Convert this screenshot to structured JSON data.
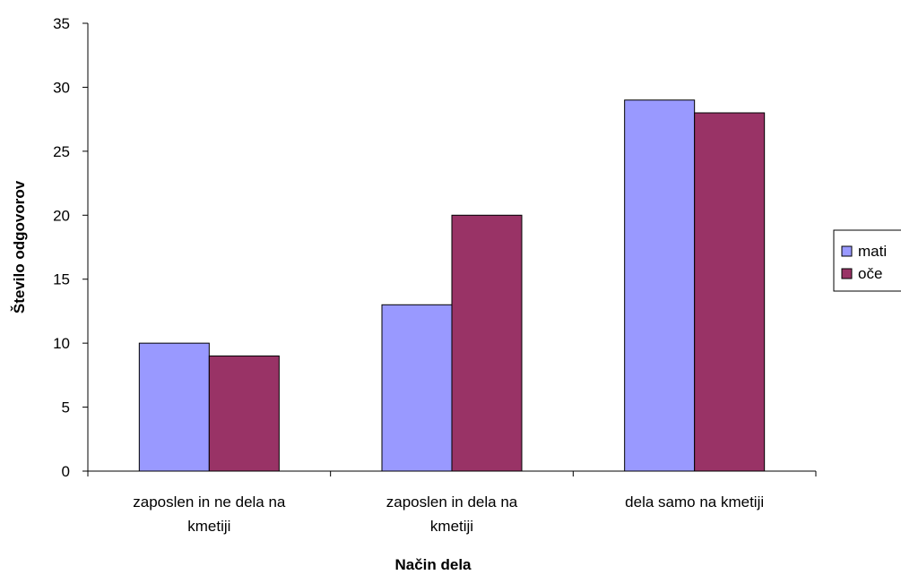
{
  "chart_data": {
    "type": "bar",
    "title": "",
    "xlabel": "Način dela",
    "ylabel": "Število odgovorov",
    "categories": [
      [
        "zaposlen in ne dela na",
        "kmetiji"
      ],
      [
        "zaposlen in dela na",
        "kmetiji"
      ],
      [
        "dela samo na kmetiji"
      ]
    ],
    "series": [
      {
        "name": "mati",
        "values": [
          10,
          13,
          29
        ],
        "color": "#9999ff"
      },
      {
        "name": "oče",
        "values": [
          9,
          20,
          28
        ],
        "color": "#993366"
      }
    ],
    "ylim": [
      0,
      35
    ],
    "yticks": [
      0,
      5,
      10,
      15,
      20,
      25,
      30,
      35
    ],
    "grid": false,
    "legend_position": "right"
  }
}
